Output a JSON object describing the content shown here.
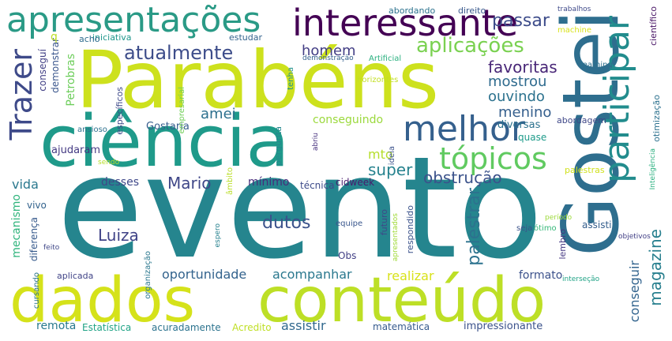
{
  "words": [
    {
      "text": "evento",
      "color": "#25858e"
    },
    {
      "text": "Parabéns",
      "color": "#cde11d"
    },
    {
      "text": "Gostei",
      "color": "#2e6e8e"
    },
    {
      "text": "ciência",
      "color": "#1f9a8a"
    },
    {
      "text": "dados",
      "color": "#d5e21a"
    },
    {
      "text": "conteúdo",
      "color": "#bddf26"
    },
    {
      "text": "interessante",
      "color": "#440154"
    },
    {
      "text": "apresentações",
      "color": "#2a9a86"
    },
    {
      "text": "melhor",
      "color": "#35608d"
    },
    {
      "text": "participar",
      "color": "#228c8d"
    },
    {
      "text": "tópicos",
      "color": "#60ca60"
    },
    {
      "text": "Trazer",
      "color": "#3e4a89"
    },
    {
      "text": "atualmente",
      "color": "#3d4d8a"
    },
    {
      "text": "aplicações",
      "color": "#7ad151"
    },
    {
      "text": "passar",
      "color": "#3d4c8a"
    },
    {
      "text": "favoritas",
      "color": "#482677"
    },
    {
      "text": "mostrou",
      "color": "#2f6b8e"
    },
    {
      "text": "ouvindo",
      "color": "#2c728e"
    },
    {
      "text": "homem",
      "color": "#433e85"
    },
    {
      "text": "menino",
      "color": "#355f8d"
    },
    {
      "text": "obstrução",
      "color": "#3b528b"
    },
    {
      "text": "super",
      "color": "#26828e"
    },
    {
      "text": "mto",
      "color": "#b5de2b"
    },
    {
      "text": "Mario",
      "color": "#3f4788"
    },
    {
      "text": "dutos",
      "color": "#3b528b"
    },
    {
      "text": "Luiza",
      "color": "#404387"
    },
    {
      "text": "palestrar",
      "color": "#2c728e"
    },
    {
      "text": "magazine",
      "color": "#277f8e"
    },
    {
      "text": "conseguir",
      "color": "#32648e"
    },
    {
      "text": "oportunidade",
      "color": "#33638d"
    },
    {
      "text": "acompanhar",
      "color": "#2a788e"
    },
    {
      "text": "realizar",
      "color": "#d8e219"
    },
    {
      "text": "formato",
      "color": "#3b518b"
    },
    {
      "text": "assistir",
      "color": "#31688e"
    },
    {
      "text": "remota",
      "color": "#29798e"
    },
    {
      "text": "Estatística",
      "color": "#20a386"
    },
    {
      "text": "acuradamente",
      "color": "#2c738e"
    },
    {
      "text": "Acredito",
      "color": "#bfdf25"
    },
    {
      "text": "matemática",
      "color": "#375b8d"
    },
    {
      "text": "impressionante",
      "color": "#3b528b"
    },
    {
      "text": "amei",
      "color": "#2d708e"
    },
    {
      "text": "Gostaria",
      "color": "#365d8d"
    },
    {
      "text": "conseguindo",
      "color": "#9bd93c"
    },
    {
      "text": "vida",
      "color": "#2a788e"
    },
    {
      "text": "desses",
      "color": "#3f4889"
    },
    {
      "text": "mínimo",
      "color": "#472d7b"
    },
    {
      "text": "técnica",
      "color": "#3e4c8a"
    },
    {
      "text": "cidweek",
      "color": "#481a6c"
    },
    {
      "text": "ajudaram",
      "color": "#443a83"
    },
    {
      "text": "diversas",
      "color": "#2c718e"
    },
    {
      "text": "quase",
      "color": "#1e9b8a"
    },
    {
      "text": "abordagem",
      "color": "#3f4788"
    },
    {
      "text": "palestras",
      "color": "#d0e11c"
    },
    {
      "text": "assisti",
      "color": "#355f8d"
    },
    {
      "text": "lembro",
      "color": "#453882"
    },
    {
      "text": "objetivos",
      "color": "#424086"
    },
    {
      "text": "ótimo",
      "color": "#35b779"
    },
    {
      "text": "seja",
      "color": "#3b528b"
    },
    {
      "text": "período",
      "color": "#9dd93b"
    },
    {
      "text": "interseção",
      "color": "#20a386"
    },
    {
      "text": "abordando",
      "color": "#2c728e"
    },
    {
      "text": "direito",
      "color": "#38588c"
    },
    {
      "text": "trabalhos",
      "color": "#3e4989"
    },
    {
      "text": "machine",
      "color": "#d8e219"
    },
    {
      "text": "learning",
      "color": "#2d708e"
    },
    {
      "text": "iniciativa",
      "color": "#1f968b"
    },
    {
      "text": "estudar",
      "color": "#33638d"
    },
    {
      "text": "acho",
      "color": "#2f6c8e"
    },
    {
      "text": "demonstração",
      "color": "#34608d"
    },
    {
      "text": "Artificial",
      "color": "#2ab07f"
    },
    {
      "text": "tenha",
      "color": "#21918c"
    },
    {
      "text": "horizontes",
      "color": "#c2df23"
    },
    {
      "text": "ideia",
      "color": "#3b528b"
    },
    {
      "text": "abriu",
      "color": "#46307e"
    },
    {
      "text": "pergunta",
      "color": "#24878e"
    },
    {
      "text": "empresarial",
      "color": "#70cf57"
    },
    {
      "text": "específicos",
      "color": "#3e4989"
    },
    {
      "text": "ansioso",
      "color": "#2d718e"
    },
    {
      "text": "sendo",
      "color": "#b8de29"
    },
    {
      "text": "âmbito",
      "color": "#bade28"
    },
    {
      "text": "Petrobras",
      "color": "#6ccd5a"
    },
    {
      "text": "conseguí",
      "color": "#424086"
    },
    {
      "text": "demonstrar",
      "color": "#39558c"
    },
    {
      "text": "q",
      "color": "#bddf26"
    },
    {
      "text": "mecanismo",
      "color": "#2fb47c"
    },
    {
      "text": "vivo",
      "color": "#33638d"
    },
    {
      "text": "diferença",
      "color": "#375a8c"
    },
    {
      "text": "feito",
      "color": "#3f4788"
    },
    {
      "text": "cursando",
      "color": "#2c738e"
    },
    {
      "text": "aplicada",
      "color": "#414487"
    },
    {
      "text": "Obs",
      "color": "#424086"
    },
    {
      "text": "organização",
      "color": "#2a778e"
    },
    {
      "text": "espero",
      "color": "#26818e"
    },
    {
      "text": "equipe",
      "color": "#39568c"
    },
    {
      "text": "futuro",
      "color": "#3e4989"
    },
    {
      "text": "respondido",
      "color": "#3b528b"
    },
    {
      "text": "apresentados",
      "color": "#a0da39"
    },
    {
      "text": "científico",
      "color": "#471365"
    },
    {
      "text": "otimização",
      "color": "#2c718e"
    },
    {
      "text": "Inteligência",
      "color": "#2ab07f"
    }
  ]
}
